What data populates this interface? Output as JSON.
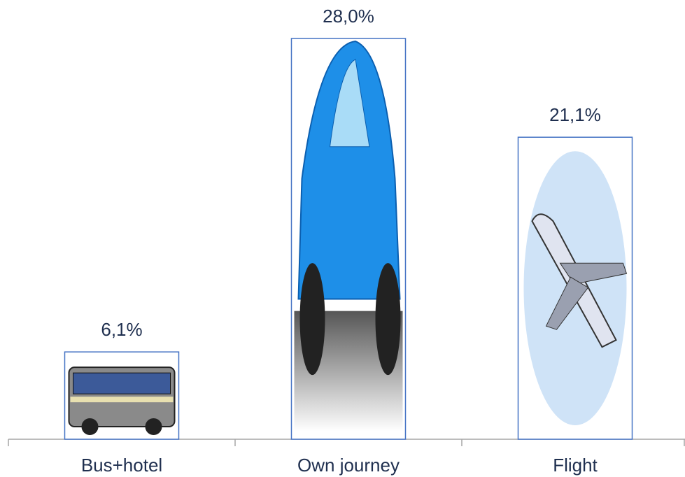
{
  "chart_data": {
    "type": "bar",
    "categories": [
      "Bus+hotel",
      "Own journey",
      "Flight"
    ],
    "values": [
      6.1,
      28.0,
      21.1
    ],
    "value_labels": [
      "6,1%",
      "28,0%",
      "21,1%"
    ],
    "color": "#4472c4"
  }
}
